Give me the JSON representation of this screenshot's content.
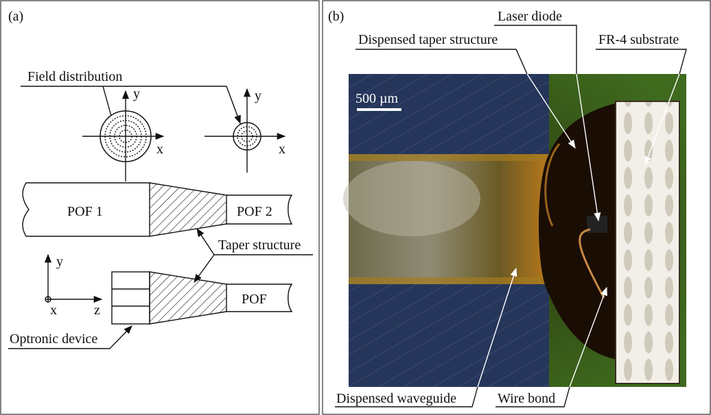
{
  "panel_a": {
    "label": "(a)",
    "field_distribution": "Field distribution",
    "axes_top_left": {
      "y": "y",
      "x": "x"
    },
    "axes_top_right": {
      "y": "y",
      "x": "x"
    },
    "pof1": "POF 1",
    "pof2": "POF 2",
    "taper_structure": "Taper structure",
    "axes_bottom": {
      "y": "y",
      "x": "x",
      "z": "z"
    },
    "pof": "POF",
    "optronic_device": "Optronic device"
  },
  "panel_b": {
    "label": "(b)",
    "laser_diode": "Laser diode",
    "dispensed_taper_structure": "Dispensed taper structure",
    "fr4_substrate": "FR-4 substrate",
    "scale_bar": "500 µm",
    "dispensed_waveguide": "Dispensed waveguide",
    "wire_bond": "Wire bond"
  }
}
